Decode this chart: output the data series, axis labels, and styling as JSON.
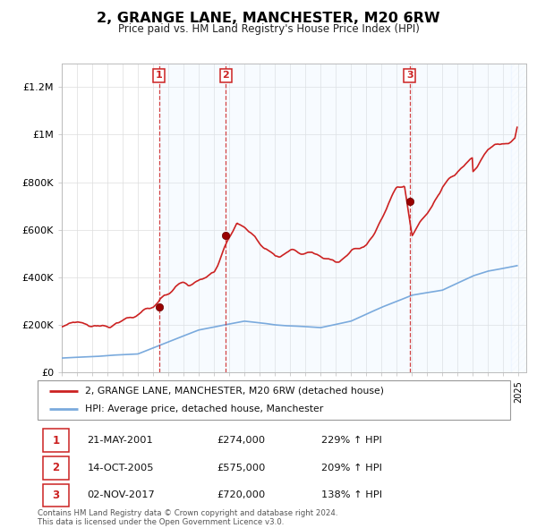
{
  "title": "2, GRANGE LANE, MANCHESTER, M20 6RW",
  "subtitle": "Price paid vs. HM Land Registry's House Price Index (HPI)",
  "ylim": [
    0,
    1300000
  ],
  "xlim_start": 1995.0,
  "xlim_end": 2025.5,
  "hpi_color": "#7aaadd",
  "price_color": "#cc2222",
  "plot_bg": "#ffffff",
  "shade_color": "#ddeeff",
  "legend_label_price": "2, GRANGE LANE, MANCHESTER, M20 6RW (detached house)",
  "legend_label_hpi": "HPI: Average price, detached house, Manchester",
  "sales": [
    {
      "num": 1,
      "date": "21-MAY-2001",
      "price": 274000,
      "pct": "229%",
      "x": 2001.38
    },
    {
      "num": 2,
      "date": "14-OCT-2005",
      "price": 575000,
      "pct": "209%",
      "x": 2005.78
    },
    {
      "num": 3,
      "date": "02-NOV-2017",
      "price": 720000,
      "pct": "138%",
      "x": 2017.84
    }
  ],
  "footer": "Contains HM Land Registry data © Crown copyright and database right 2024.\nThis data is licensed under the Open Government Licence v3.0.",
  "yticks": [
    0,
    200000,
    400000,
    600000,
    800000,
    1000000,
    1200000
  ],
  "ytick_labels": [
    "£0",
    "£200K",
    "£400K",
    "£600K",
    "£800K",
    "£1M",
    "£1.2M"
  ]
}
